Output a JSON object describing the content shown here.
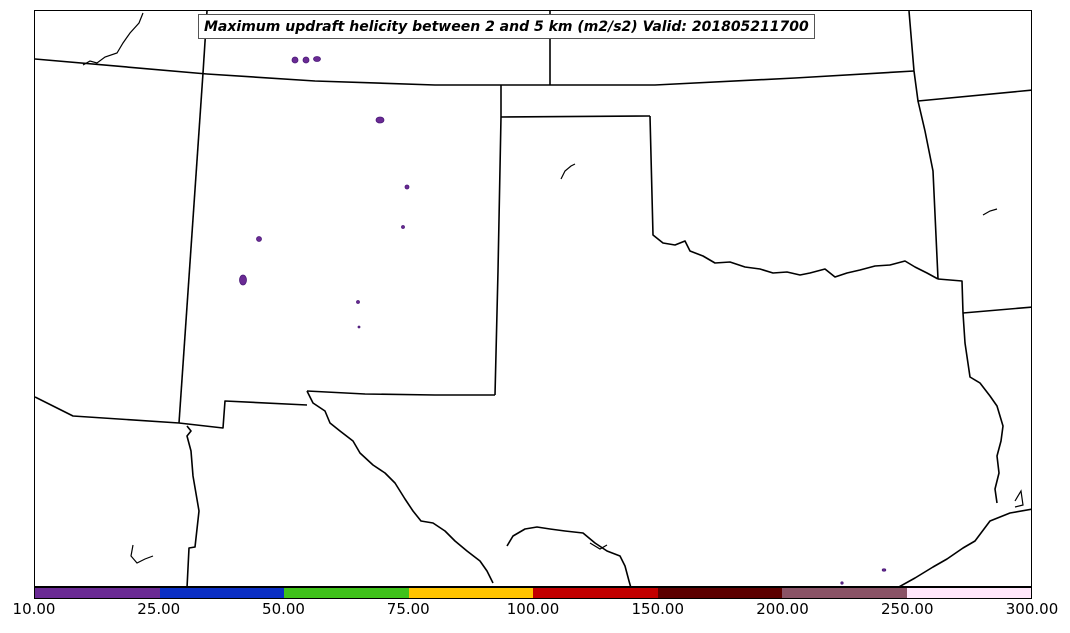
{
  "title": "Maximum updraft helicity between 2 and 5 km (m2/s2) Valid: 201805211700",
  "colorbar": {
    "ticks": [
      "10.00",
      "25.00",
      "50.00",
      "75.00",
      "100.00",
      "150.00",
      "200.00",
      "250.00",
      "300.00"
    ],
    "colors": [
      "#6a2a94",
      "#0a2ec4",
      "#3fc21a",
      "#ffc400",
      "#c20000",
      "#5c0000",
      "#8a5366",
      "#ffe6fa"
    ]
  },
  "map": {
    "line_color": "#000000",
    "cell_color": "#6a2a94",
    "cell_outline": "#4a1a78"
  }
}
